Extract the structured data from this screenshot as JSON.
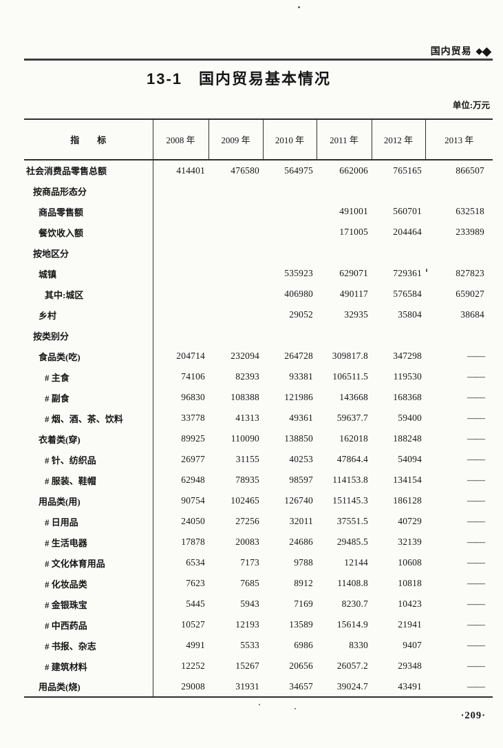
{
  "page": {
    "section_label": "国内贸易",
    "diamonds": [
      "◆",
      "◆"
    ],
    "title": "13-1　国内贸易基本情况",
    "unit_label": "单位:万元",
    "page_number": "·209·"
  },
  "table": {
    "indicator_header": "指　　标",
    "year_headers": [
      "2008 年",
      "2009 年",
      "2010 年",
      "2011 年",
      "2012 年",
      "2013 年"
    ],
    "no_data_symbol": "——",
    "rows": [
      {
        "label": "社会消费品零售总额",
        "indent": 0,
        "values": [
          "414401",
          "476580",
          "564975",
          "662006",
          "765165",
          "866507"
        ]
      },
      {
        "label": "按商品形态分",
        "indent": 1,
        "values": [
          "",
          "",
          "",
          "",
          "",
          ""
        ]
      },
      {
        "label": "商品零售额",
        "indent": 2,
        "values": [
          "",
          "",
          "",
          "491001",
          "560701",
          "632518"
        ]
      },
      {
        "label": "餐饮收入额",
        "indent": 2,
        "values": [
          "",
          "",
          "",
          "171005",
          "204464",
          "233989"
        ]
      },
      {
        "label": "按地区分",
        "indent": 1,
        "values": [
          "",
          "",
          "",
          "",
          "",
          ""
        ]
      },
      {
        "label": "城镇",
        "indent": 2,
        "values": [
          "",
          "",
          "535923",
          "629071",
          "729361",
          "827823"
        ]
      },
      {
        "label": "其中:城区",
        "indent": 3,
        "values": [
          "",
          "",
          "406980",
          "490117",
          "576584",
          "659027"
        ]
      },
      {
        "label": "乡村",
        "indent": 2,
        "values": [
          "",
          "",
          "29052",
          "32935",
          "35804",
          "38684"
        ]
      },
      {
        "label": "按类别分",
        "indent": 1,
        "values": [
          "",
          "",
          "",
          "",
          "",
          ""
        ]
      },
      {
        "label": "食品类(吃)",
        "indent": 2,
        "values": [
          "204714",
          "232094",
          "264728",
          "309817.8",
          "347298",
          "——"
        ]
      },
      {
        "label": "# 主食",
        "indent": 3,
        "values": [
          "74106",
          "82393",
          "93381",
          "106511.5",
          "119530",
          "——"
        ]
      },
      {
        "label": "# 副食",
        "indent": 3,
        "values": [
          "96830",
          "108388",
          "121986",
          "143668",
          "168368",
          "——"
        ]
      },
      {
        "label": "# 烟、酒、茶、饮料",
        "indent": 3,
        "values": [
          "33778",
          "41313",
          "49361",
          "59637.7",
          "59400",
          "——"
        ]
      },
      {
        "label": "衣着类(穿)",
        "indent": 2,
        "values": [
          "89925",
          "110090",
          "138850",
          "162018",
          "188248",
          "——"
        ]
      },
      {
        "label": "# 针、纺织品",
        "indent": 3,
        "values": [
          "26977",
          "31155",
          "40253",
          "47864.4",
          "54094",
          "——"
        ]
      },
      {
        "label": "# 服装、鞋帽",
        "indent": 3,
        "values": [
          "62948",
          "78935",
          "98597",
          "114153.8",
          "134154",
          "——"
        ]
      },
      {
        "label": "用品类(用)",
        "indent": 2,
        "values": [
          "90754",
          "102465",
          "126740",
          "151145.3",
          "186128",
          "——"
        ]
      },
      {
        "label": "# 日用品",
        "indent": 3,
        "values": [
          "24050",
          "27256",
          "32011",
          "37551.5",
          "40729",
          "——"
        ]
      },
      {
        "label": "# 生活电器",
        "indent": 3,
        "values": [
          "17878",
          "20083",
          "24686",
          "29485.5",
          "32139",
          "——"
        ]
      },
      {
        "label": "# 文化体育用品",
        "indent": 3,
        "values": [
          "6534",
          "7173",
          "9788",
          "12144",
          "10608",
          "——"
        ]
      },
      {
        "label": "# 化妆品类",
        "indent": 3,
        "values": [
          "7623",
          "7685",
          "8912",
          "11408.8",
          "10818",
          "——"
        ]
      },
      {
        "label": "# 金银珠宝",
        "indent": 3,
        "values": [
          "5445",
          "5943",
          "7169",
          "8230.7",
          "10423",
          "——"
        ]
      },
      {
        "label": "# 中西药品",
        "indent": 3,
        "values": [
          "10527",
          "12193",
          "13589",
          "15614.9",
          "21941",
          "——"
        ]
      },
      {
        "label": "# 书报、杂志",
        "indent": 3,
        "values": [
          "4991",
          "5533",
          "6986",
          "8330",
          "9407",
          "——"
        ]
      },
      {
        "label": "# 建筑材料",
        "indent": 3,
        "values": [
          "12252",
          "15267",
          "20656",
          "26057.2",
          "29348",
          "——"
        ]
      },
      {
        "label": "用品类(烧)",
        "indent": 2,
        "values": [
          "29008",
          "31931",
          "34657",
          "39024.7",
          "43491",
          "——"
        ]
      }
    ]
  }
}
